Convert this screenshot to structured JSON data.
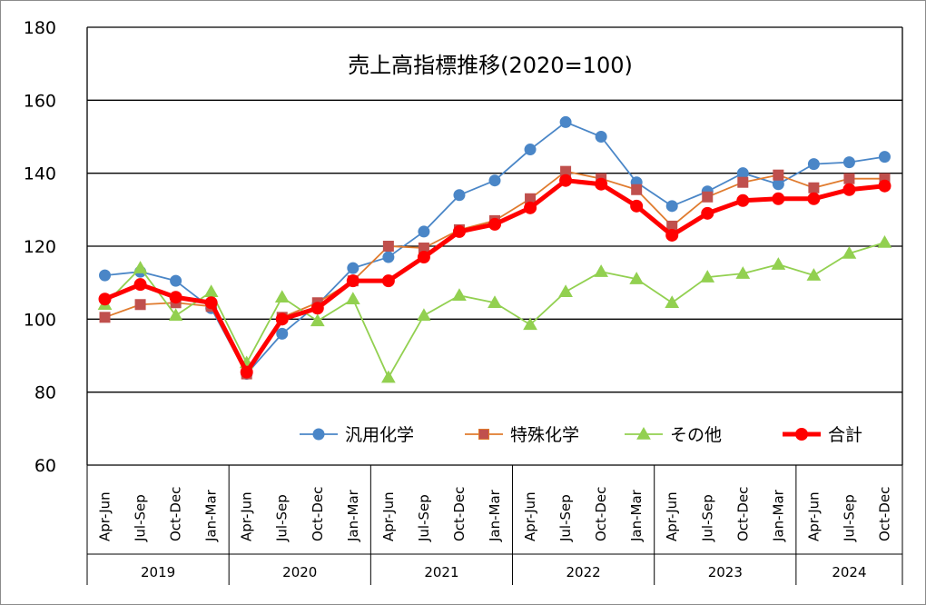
{
  "chart_data": {
    "type": "line",
    "title": "売上高指標推移(2020=100)",
    "xlabel": "",
    "ylabel": "",
    "ylim": [
      60,
      180
    ],
    "yticks": [
      60,
      80,
      100,
      120,
      140,
      160,
      180
    ],
    "grid": true,
    "legend_position": "center-bottom-inside",
    "categories": [
      "Apr-Jun",
      "Jul-Sep",
      "Oct-Dec",
      "Jan-Mar",
      "Apr-Jun",
      "Jul-Sep",
      "Oct-Dec",
      "Jan-Mar",
      "Apr-Jun",
      "Jul-Sep",
      "Oct-Dec",
      "Jan-Mar",
      "Apr-Jun",
      "Jul-Sep",
      "Oct-Dec",
      "Jan-Mar",
      "Apr-Jun",
      "Jul-Sep",
      "Oct-Dec",
      "Jan-Mar",
      "Apr-Jun",
      "Jul-Sep",
      "Oct-Dec"
    ],
    "year_groups": [
      {
        "label": "2019",
        "count": 4
      },
      {
        "label": "2020",
        "count": 4
      },
      {
        "label": "2021",
        "count": 4
      },
      {
        "label": "2022",
        "count": 4
      },
      {
        "label": "2023",
        "count": 4
      },
      {
        "label": "2024",
        "count": 3
      }
    ],
    "series": [
      {
        "name": "汎用化学",
        "color": "#4a86c7",
        "marker": "circle",
        "values": [
          112,
          113,
          110.5,
          103,
          85,
          96,
          104,
          114,
          117,
          124,
          134,
          138,
          146.5,
          154,
          150,
          137.5,
          131,
          135,
          140,
          137,
          142.5,
          143,
          144.5
        ]
      },
      {
        "name": "特殊化学",
        "color": "#e07b2e",
        "marker_color": "#c0504d",
        "marker": "square",
        "values": [
          100.5,
          104,
          104.5,
          103.5,
          85,
          100.5,
          104.5,
          110.5,
          120,
          119.5,
          124.5,
          127,
          133,
          140.5,
          138.5,
          135.5,
          125.5,
          133.5,
          137.5,
          139.5,
          136,
          138.5,
          138.5
        ]
      },
      {
        "name": "その他",
        "color": "#92d050",
        "marker": "triangle",
        "values": [
          104,
          114,
          101,
          107.5,
          88,
          106,
          99.5,
          105.5,
          84,
          101,
          106.5,
          104.5,
          98.5,
          107.5,
          113,
          111,
          104.5,
          111.5,
          112.5,
          115,
          112,
          118,
          121
        ]
      },
      {
        "name": "合計",
        "color": "#ff0000",
        "marker": "circle",
        "thick": true,
        "values": [
          105.5,
          109.5,
          106,
          104.5,
          85.5,
          100,
          103,
          110.5,
          110.5,
          117,
          124,
          126,
          130.5,
          138,
          137,
          131,
          123,
          129,
          132.5,
          133,
          133,
          135.5,
          136.5
        ]
      }
    ]
  }
}
